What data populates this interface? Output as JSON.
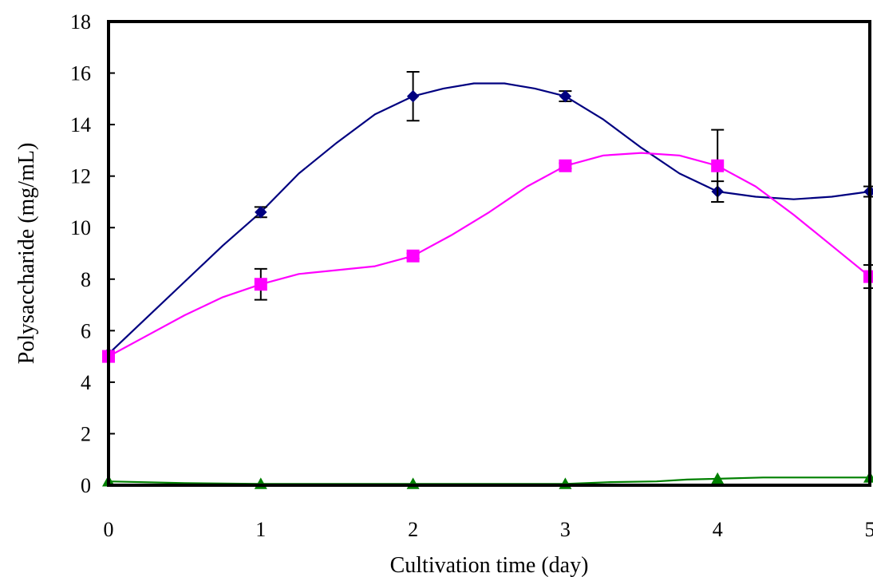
{
  "chart_data": {
    "type": "line",
    "title": "",
    "xlabel": "Cultivation time (day)",
    "ylabel": "Polysaccharide (mg/mL)",
    "xlim": [
      0,
      5
    ],
    "ylim": [
      0,
      18
    ],
    "x_ticks": [
      "0",
      "1",
      "2",
      "3",
      "4",
      "5"
    ],
    "y_ticks": [
      "0",
      "2",
      "4",
      "6",
      "8",
      "10",
      "12",
      "14",
      "16",
      "18"
    ],
    "grid": false,
    "legend": "none",
    "series": [
      {
        "marker": "diamond",
        "color": "#000080",
        "x": [
          0,
          1,
          2,
          3,
          4,
          5
        ],
        "y": [
          5.1,
          10.6,
          15.1,
          15.1,
          11.4,
          11.4
        ],
        "error": [
          0.1,
          0.2,
          0.95,
          0.2,
          0.4,
          0.2
        ],
        "smooth_curve": [
          [
            0,
            5.1
          ],
          [
            0.25,
            6.5
          ],
          [
            0.5,
            7.9
          ],
          [
            0.75,
            9.3
          ],
          [
            1,
            10.6
          ],
          [
            1.25,
            12.1
          ],
          [
            1.5,
            13.3
          ],
          [
            1.75,
            14.4
          ],
          [
            2,
            15.1
          ],
          [
            2.2,
            15.4
          ],
          [
            2.4,
            15.6
          ],
          [
            2.6,
            15.6
          ],
          [
            2.8,
            15.4
          ],
          [
            3,
            15.1
          ],
          [
            3.25,
            14.2
          ],
          [
            3.5,
            13.1
          ],
          [
            3.75,
            12.1
          ],
          [
            4,
            11.4
          ],
          [
            4.25,
            11.2
          ],
          [
            4.5,
            11.1
          ],
          [
            4.75,
            11.2
          ],
          [
            5,
            11.4
          ]
        ]
      },
      {
        "marker": "square",
        "color": "#ff00ff",
        "x": [
          0,
          1,
          2,
          3,
          4,
          5
        ],
        "y": [
          5.0,
          7.8,
          8.9,
          12.4,
          12.4,
          8.1
        ],
        "error": [
          0.1,
          0.6,
          0.1,
          0.1,
          1.4,
          0.45
        ],
        "smooth_curve": [
          [
            0,
            5.0
          ],
          [
            0.25,
            5.8
          ],
          [
            0.5,
            6.6
          ],
          [
            0.75,
            7.3
          ],
          [
            1,
            7.8
          ],
          [
            1.25,
            8.2
          ],
          [
            1.5,
            8.35
          ],
          [
            1.75,
            8.5
          ],
          [
            2,
            8.9
          ],
          [
            2.25,
            9.7
          ],
          [
            2.5,
            10.6
          ],
          [
            2.75,
            11.6
          ],
          [
            3,
            12.4
          ],
          [
            3.25,
            12.8
          ],
          [
            3.5,
            12.9
          ],
          [
            3.75,
            12.8
          ],
          [
            4,
            12.4
          ],
          [
            4.25,
            11.6
          ],
          [
            4.5,
            10.5
          ],
          [
            4.75,
            9.3
          ],
          [
            5,
            8.1
          ]
        ]
      },
      {
        "marker": "triangle",
        "color": "#008000",
        "x": [
          0,
          1,
          2,
          3,
          4,
          5
        ],
        "y": [
          0.15,
          0.05,
          0.05,
          0.05,
          0.25,
          0.3
        ],
        "error": [
          0,
          0,
          0,
          0,
          0,
          0
        ],
        "smooth_curve": [
          [
            0,
            0.15
          ],
          [
            0.5,
            0.08
          ],
          [
            1,
            0.05
          ],
          [
            2,
            0.05
          ],
          [
            3,
            0.05
          ],
          [
            3.3,
            0.12
          ],
          [
            3.6,
            0.15
          ],
          [
            3.8,
            0.22
          ],
          [
            4,
            0.25
          ],
          [
            4.3,
            0.3
          ],
          [
            5,
            0.3
          ]
        ]
      }
    ]
  }
}
